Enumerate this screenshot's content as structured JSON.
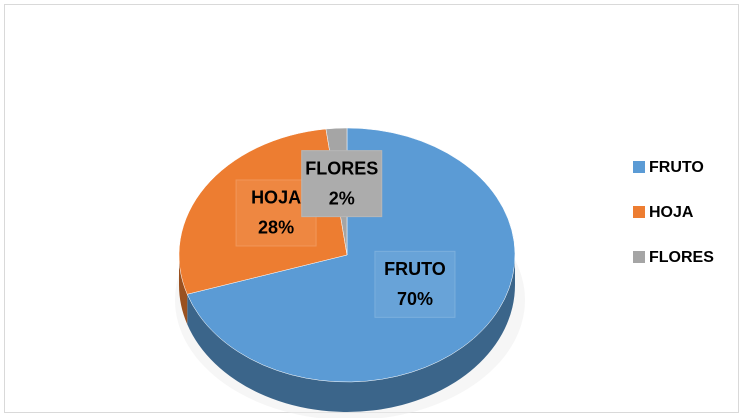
{
  "chart_data": {
    "type": "pie",
    "categories": [
      "FRUTO",
      "HOJA",
      "FLORES"
    ],
    "values": [
      70,
      28,
      2
    ],
    "value_labels": [
      "70%",
      "28%",
      "2%"
    ],
    "colors": [
      "#5b9bd5",
      "#ed7d31",
      "#a5a5a5"
    ],
    "legend": "right"
  }
}
